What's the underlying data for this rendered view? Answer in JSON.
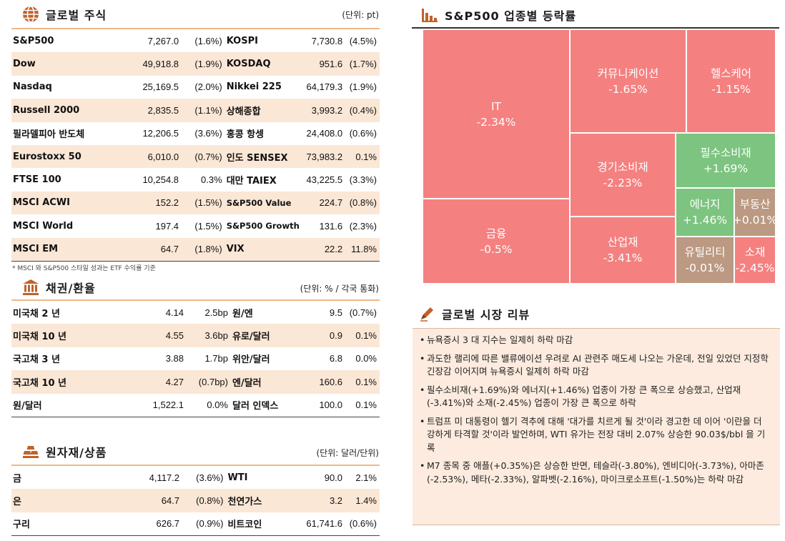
{
  "equities": {
    "title": "글로벌 주식",
    "unit": "(단위: pt)",
    "note": "* MSCI 와 S&P500 스타일 성과는 ETF 수익률 기준",
    "rows": [
      {
        "n1": "S&P500",
        "v1": "7,267.0",
        "c1": "(1.6%)",
        "n2": "KOSPI",
        "v2": "7,730.8",
        "c2": "(4.5%)"
      },
      {
        "n1": "Dow",
        "v1": "49,918.8",
        "c1": "(1.9%)",
        "n2": "KOSDAQ",
        "v2": "951.6",
        "c2": "(1.7%)"
      },
      {
        "n1": "Nasdaq",
        "v1": "25,169.5",
        "c1": "(2.0%)",
        "n2": "Nikkei 225",
        "v2": "64,179.3",
        "c2": "(1.9%)"
      },
      {
        "n1": "Russell 2000",
        "v1": "2,835.5",
        "c1": "(1.1%)",
        "n2": "상해종합",
        "v2": "3,993.2",
        "c2": "(0.4%)"
      },
      {
        "n1": "필라델피아 반도체",
        "v1": "12,206.5",
        "c1": "(3.6%)",
        "n2": "홍콩 항셍",
        "v2": "24,408.0",
        "c2": "(0.6%)"
      },
      {
        "n1": "Eurostoxx 50",
        "v1": "6,010.0",
        "c1": "(0.7%)",
        "n2": "인도 SENSEX",
        "v2": "73,983.2",
        "c2": "0.1%"
      },
      {
        "n1": "FTSE 100",
        "v1": "10,254.8",
        "c1": "0.3%",
        "n2": "대만 TAIEX",
        "v2": "43,225.5",
        "c2": "(3.3%)"
      },
      {
        "n1": "MSCI ACWI",
        "v1": "152.2",
        "c1": "(1.5%)",
        "n2": "S&P500 Value",
        "v2": "224.7",
        "c2": "(0.8%)"
      },
      {
        "n1": "MSCI World",
        "v1": "197.4",
        "c1": "(1.5%)",
        "n2": "S&P500 Growth",
        "v2": "131.6",
        "c2": "(2.3%)"
      },
      {
        "n1": "MSCI EM",
        "v1": "64.7",
        "c1": "(1.8%)",
        "n2": "VIX",
        "v2": "22.2",
        "c2": "11.8%"
      }
    ]
  },
  "bonds": {
    "title": "채권/환율",
    "unit": "(단위: % / 각국 통화)",
    "rows": [
      {
        "n1": "미국채 2 년",
        "v1": "4.14",
        "c1": "2.5bp",
        "n2": "원/엔",
        "v2": "9.5",
        "c2": "(0.7%)"
      },
      {
        "n1": "미국채 10 년",
        "v1": "4.55",
        "c1": "3.6bp",
        "n2": "유로/달러",
        "v2": "0.9",
        "c2": "0.1%"
      },
      {
        "n1": "국고채 3 년",
        "v1": "3.88",
        "c1": "1.7bp",
        "n2": "위안/달러",
        "v2": "6.8",
        "c2": "0.0%"
      },
      {
        "n1": "국고채 10 년",
        "v1": "4.27",
        "c1": "(0.7bp)",
        "n2": "엔/달러",
        "v2": "160.6",
        "c2": "0.1%"
      },
      {
        "n1": "원/달러",
        "v1": "1,522.1",
        "c1": "0.0%",
        "n2": "달러 인덱스",
        "v2": "100.0",
        "c2": "0.1%"
      }
    ]
  },
  "commodities": {
    "title": "원자재/상품",
    "unit": "(단위: 달러/단위)",
    "rows": [
      {
        "n1": "금",
        "v1": "4,117.2",
        "c1": "(3.6%)",
        "n2": "WTI",
        "v2": "90.0",
        "c2": "2.1%"
      },
      {
        "n1": "은",
        "v1": "64.7",
        "c1": "(0.8%)",
        "n2": "천연가스",
        "v2": "3.2",
        "c2": "1.4%"
      },
      {
        "n1": "구리",
        "v1": "626.7",
        "c1": "(0.9%)",
        "n2": "비트코인",
        "v2": "61,741.6",
        "c2": "(0.6%)"
      }
    ]
  },
  "sectors": {
    "title": "S&P500 업종별 등락률",
    "colors": {
      "down": "#f58080",
      "up": "#7cc47f",
      "flat": "#bb9982"
    },
    "tiles": [
      {
        "name": "IT",
        "change": "-2.34%"
      },
      {
        "name": "금융",
        "change": "-0.5%"
      },
      {
        "name": "커뮤니케이션",
        "change": "-1.65%"
      },
      {
        "name": "헬스케어",
        "change": "-1.15%"
      },
      {
        "name": "경기소비재",
        "change": "-2.23%"
      },
      {
        "name": "필수소비재",
        "change": "+1.69%"
      },
      {
        "name": "에너지",
        "change": "+1.46%"
      },
      {
        "name": "부동산",
        "change": "+0.01%"
      },
      {
        "name": "산업재",
        "change": "-3.41%"
      },
      {
        "name": "유틸리티",
        "change": "-0.01%"
      },
      {
        "name": "소재",
        "change": "-2.45%"
      }
    ]
  },
  "review": {
    "title": "글로벌 시장 리뷰",
    "items": [
      "뉴욕증시 3 대 지수는 일제히 하락 마감",
      "과도한 랠리에 따른 밸류에이션 우려로 AI 관련주 매도세 나오는 가운데, 전일 있었던 지정학 긴장감 이어지며 뉴욕증시 일제히 하락 마감",
      "필수소비재(+1.69%)와 에너지(+1.46%) 업종이 가장 큰 폭으로 상승했고, 산업재(-3.41%)와 소재(-2.45%) 업종이 가장 큰 폭으로 하락",
      "트럼프 미 대통령이 헬기 격추에 대해 '대가를 치르게 될 것'이라 경고한 데 이어 '이란을 더 강하게 타격할 것'이라 발언하며, WTI 유가는 전장 대비 2.07% 상승한 90.03$/bbl 을 기록",
      "M7 종목 중 애플(+0.35%)은 상승한 반면, 테슬라(-3.80%), 엔비디아(-3.73%), 아마존(-2.53%), 메타(-2.33%), 알파벳(-2.16%), 마이크로소프트(-1.50%)는 하락 마감"
    ]
  }
}
